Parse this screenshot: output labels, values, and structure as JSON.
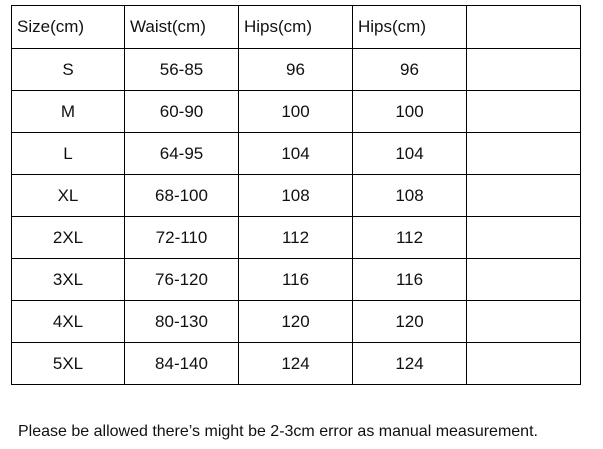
{
  "table": {
    "header": [
      "Size(cm)",
      "Waist(cm)",
      "Hips(cm)",
      "Hips(cm)"
    ],
    "rows": [
      [
        "S",
        "56-85",
        "96",
        "96"
      ],
      [
        "M",
        "60-90",
        "100",
        "100"
      ],
      [
        "L",
        "64-95",
        "104",
        "104"
      ],
      [
        "XL",
        "68-100",
        "108",
        "108"
      ],
      [
        "2XL",
        "72-110",
        "112",
        "112"
      ],
      [
        "3XL",
        "76-120",
        "116",
        "116"
      ],
      [
        "4XL",
        "80-130",
        "120",
        "120"
      ],
      [
        "5XL",
        "84-140",
        "124",
        "124"
      ]
    ]
  },
  "note": "Please be allowed there’s might be 2-3cm error as manual measurement."
}
